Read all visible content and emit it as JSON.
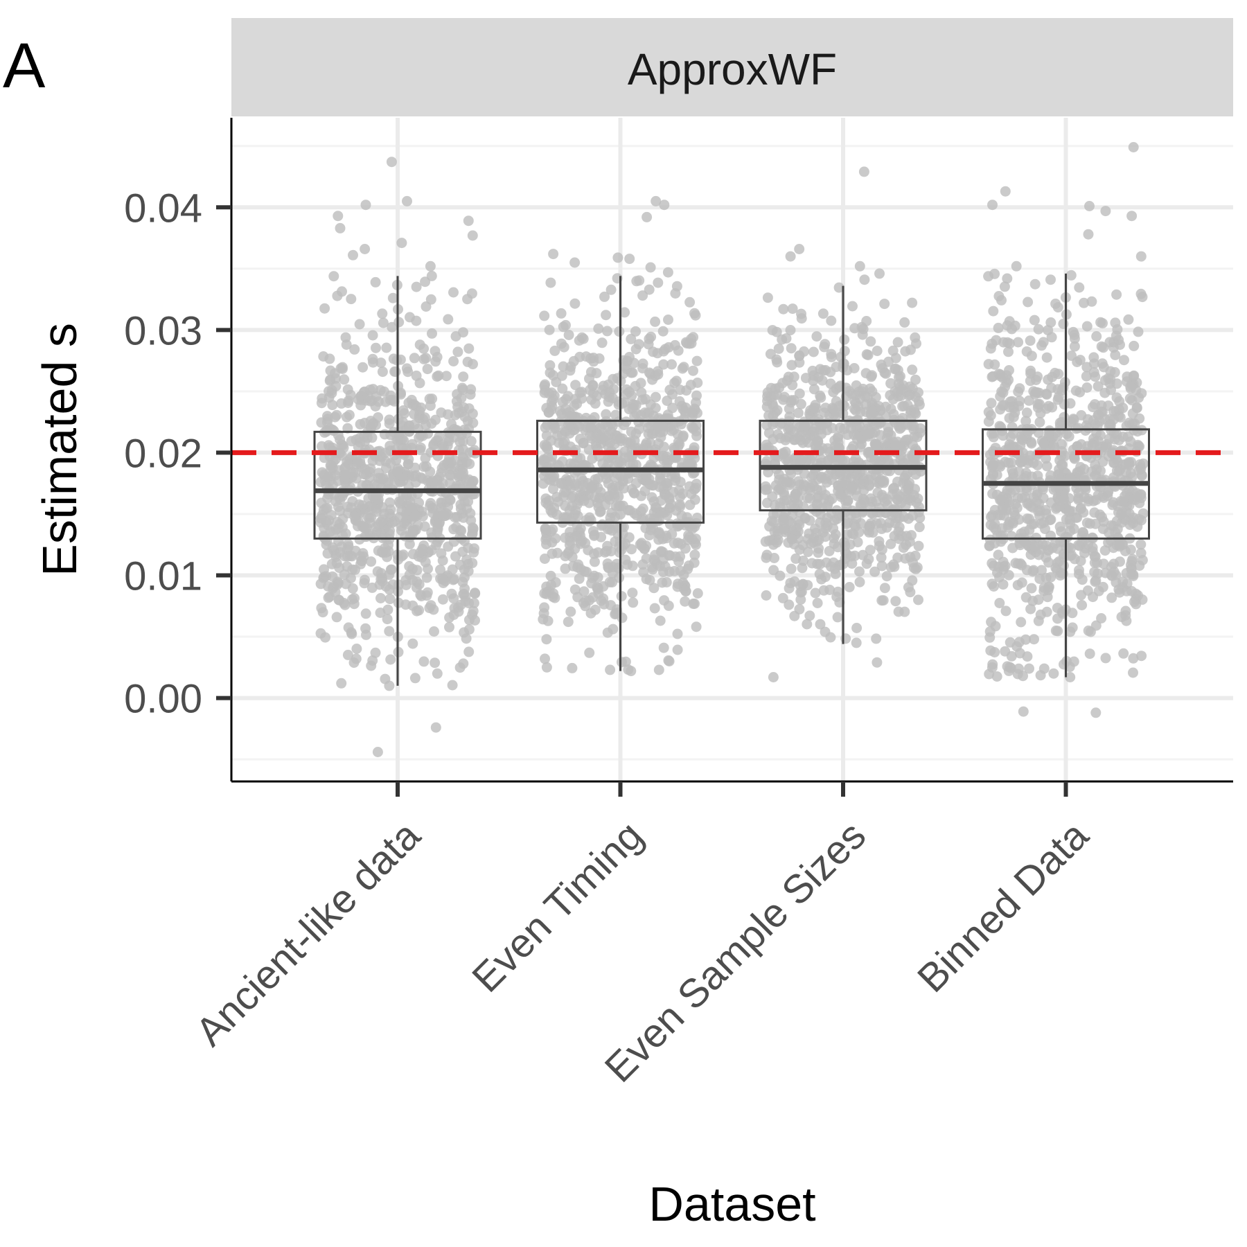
{
  "panel_letter": "A",
  "chart_data": {
    "type": "boxplot",
    "facet_label": "ApproxWF",
    "xlabel": "Dataset",
    "ylabel": "Estimated s",
    "ylim": [
      -0.0068,
      0.0473
    ],
    "y_ticks": [
      0.0,
      0.01,
      0.02,
      0.03,
      0.04
    ],
    "y_tick_labels": [
      "0.00",
      "0.01",
      "0.02",
      "0.03",
      "0.04"
    ],
    "grid": true,
    "reference_line": {
      "y": 0.02,
      "color": "#e41a1c",
      "style": "dashed"
    },
    "categories": [
      "Ancient-like data",
      "Even Timing",
      "Even Sample Sizes",
      "Binned Data"
    ],
    "boxes": [
      {
        "category": "Ancient-like data",
        "lower_whisker": 0.001,
        "q1": 0.013,
        "median": 0.0169,
        "q3": 0.0217,
        "upper_whisker": 0.0344
      },
      {
        "category": "Even Timing",
        "lower_whisker": 0.0022,
        "q1": 0.0143,
        "median": 0.0186,
        "q3": 0.0226,
        "upper_whisker": 0.0344
      },
      {
        "category": "Even Sample Sizes",
        "lower_whisker": 0.0044,
        "q1": 0.0153,
        "median": 0.0188,
        "q3": 0.0226,
        "upper_whisker": 0.0336
      },
      {
        "category": "Binned Data",
        "lower_whisker": 0.0017,
        "q1": 0.013,
        "median": 0.0175,
        "q3": 0.0219,
        "upper_whisker": 0.0346
      }
    ],
    "points": {
      "color": "#bdbdbd",
      "jitter": true,
      "per_category": 900,
      "outliers": [
        {
          "category": "Ancient-like data",
          "values": [
            0.0437,
            0.0405,
            0.0402,
            0.0393,
            0.0389,
            0.0383,
            0.0377,
            0.0371,
            0.0366,
            0.0361,
            0.0352,
            0.0012,
            0.001,
            -0.0024,
            -0.0044
          ]
        },
        {
          "category": "Even Timing",
          "values": [
            0.0405,
            0.0402,
            0.0392,
            0.0362,
            0.0359,
            0.0358,
            0.0355,
            0.0351,
            0.0347,
            0.0022,
            0.0025,
            0.003,
            0.0032
          ]
        },
        {
          "category": "Even Sample Sizes",
          "values": [
            0.0429,
            0.0366,
            0.036,
            0.0352,
            0.0346,
            0.0341,
            0.0029,
            0.0017,
            0.0045
          ]
        },
        {
          "category": "Binned Data",
          "values": [
            0.0449,
            0.0413,
            0.0402,
            0.0401,
            0.0397,
            0.0393,
            0.0378,
            0.036,
            0.0352,
            0.0017,
            0.002,
            0.0024,
            -0.0012,
            -0.0011
          ]
        }
      ]
    }
  }
}
